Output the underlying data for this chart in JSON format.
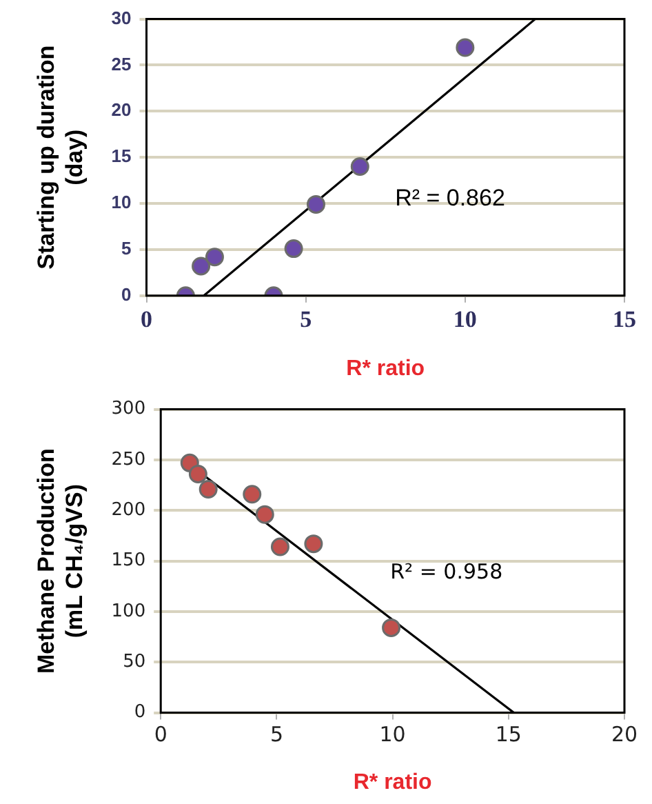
{
  "chart_data": [
    {
      "type": "scatter",
      "xlabel": "R* ratio",
      "ylabel": "Starting up duration\n(day)",
      "xlim": [
        0,
        15
      ],
      "xticks": [
        0,
        5,
        10,
        15
      ],
      "ylim": [
        0,
        30
      ],
      "yticks": [
        0,
        5,
        10,
        15,
        20,
        25,
        30
      ],
      "grid": "y",
      "legend": false,
      "marker": "circle",
      "annotations": [
        "R² = 0.862"
      ],
      "series": [
        {
          "type": "scatter",
          "color": "#6a4aa8",
          "x": [
            1.23,
            1.71,
            2.14,
            3.99,
            4.62,
            5.32,
            6.7,
            10.0
          ],
          "values": [
            0,
            3.2,
            4.2,
            0,
            5.1,
            9.9,
            14.0,
            26.9
          ]
        },
        {
          "type": "line",
          "color": "#000000",
          "marker": "none",
          "x": [
            1.8,
            12.2
          ],
          "values": [
            0,
            30
          ]
        }
      ]
    },
    {
      "type": "scatter",
      "xlabel": "R* ratio",
      "ylabel": "Methane Production\n(mL CH₄/gVS)",
      "xlim": [
        0,
        20
      ],
      "xticks": [
        0,
        5,
        10,
        15,
        20
      ],
      "ylim": [
        0,
        300
      ],
      "yticks": [
        0,
        50,
        100,
        150,
        200,
        250,
        300
      ],
      "grid": "y",
      "legend": false,
      "marker": "circle",
      "annotations": [
        "R² = 0.958"
      ],
      "series": [
        {
          "type": "scatter",
          "color": "#c0504d",
          "x": [
            1.25,
            1.61,
            2.05,
            3.94,
            4.49,
            5.15,
            6.59,
            9.94
          ],
          "values": [
            247,
            236,
            221,
            216,
            196,
            164,
            167,
            84
          ]
        },
        {
          "type": "line",
          "color": "#000000",
          "marker": "none",
          "x": [
            1.27,
            15.23
          ],
          "values": [
            245,
            0
          ]
        }
      ]
    }
  ]
}
